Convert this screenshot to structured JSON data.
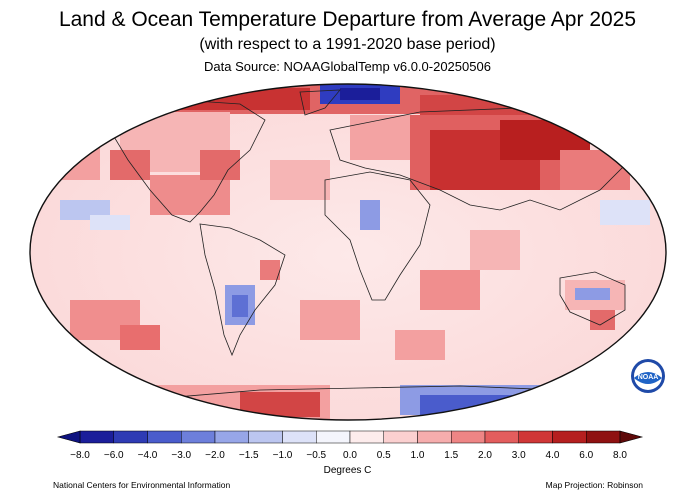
{
  "header": {
    "title": "Land & Ocean Temperature Departure from Average Apr 2025",
    "subtitle": "(with respect to a 1991-2020 base period)",
    "source": "Data Source: NOAAGlobalTemp v6.0.0-20250506"
  },
  "colorbar": {
    "ticks": [
      "−8.0",
      "−6.0",
      "−4.0",
      "−3.0",
      "−2.0",
      "−1.5",
      "−1.0",
      "−0.5",
      "0.0",
      "0.5",
      "1.0",
      "1.5",
      "2.0",
      "3.0",
      "4.0",
      "6.0",
      "8.0"
    ],
    "colors": [
      "#1b1e9a",
      "#2e3bb4",
      "#4a5ccc",
      "#6d7fdb",
      "#97a6e8",
      "#bcc6f0",
      "#dde2f8",
      "#f4f5fc",
      "#fdecec",
      "#fbd0d0",
      "#f6adad",
      "#ee8585",
      "#e35d5d",
      "#d03737",
      "#b51f1f",
      "#8f1111"
    ],
    "units": "Degrees C"
  },
  "footer": {
    "credit": "National Centers for Environmental Information",
    "projection": "Map Projection: Robinson"
  },
  "logo": {
    "text": "NOAA",
    "icon": "noaa-logo-icon"
  }
}
